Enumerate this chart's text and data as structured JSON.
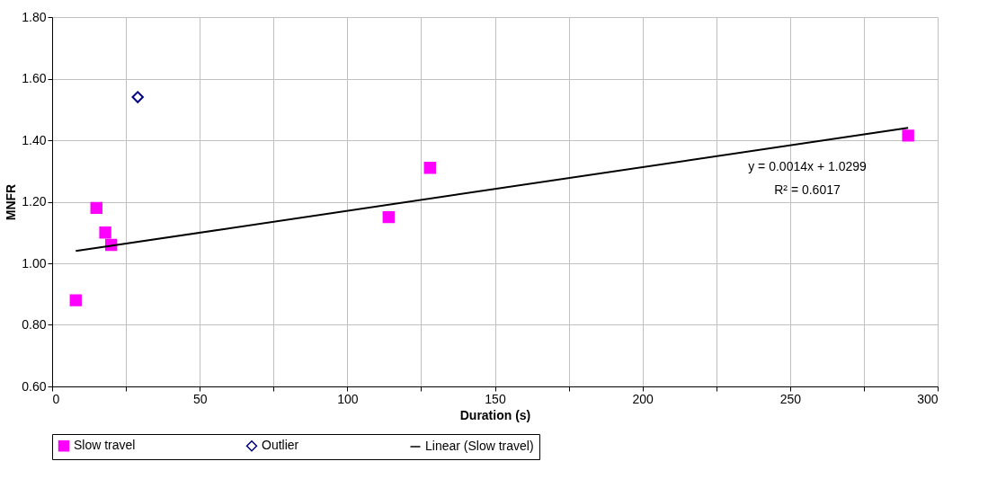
{
  "chart_data": {
    "type": "scatter",
    "xlabel": "Duration (s)",
    "ylabel": "MNFR",
    "xlim": [
      0,
      300
    ],
    "xticks": [
      0,
      {
        "value": 25,
        "label": null
      },
      50,
      {
        "value": 75,
        "label": null
      },
      100,
      {
        "value": 125,
        "label": null
      },
      150,
      {
        "value": 175,
        "label": null
      },
      200,
      {
        "value": 225,
        "label": null
      },
      250,
      {
        "value": 275,
        "label": null
      },
      300
    ],
    "ylim": [
      0.6,
      1.8
    ],
    "yticks": [
      {
        "value": 0.6,
        "label": "0.60"
      },
      {
        "value": 0.8,
        "label": "0.80"
      },
      {
        "value": 1.0,
        "label": "1.00"
      },
      {
        "value": 1.2,
        "label": "1.20"
      },
      {
        "value": 1.4,
        "label": "1.40"
      },
      {
        "value": 1.6,
        "label": "1.60"
      },
      {
        "value": 1.8,
        "label": "1.80"
      }
    ],
    "grid": true,
    "legend": "bottom",
    "series": [
      {
        "name": "Slow travel",
        "marker": "square",
        "color": "#ff00ff",
        "x": [
          8,
          15,
          18,
          20,
          114,
          128,
          290
        ],
        "values": [
          0.88,
          1.18,
          1.1,
          1.06,
          1.15,
          1.31,
          1.415
        ]
      },
      {
        "name": "Outlier",
        "marker": "diamond",
        "color": "#000080",
        "x": [
          29
        ],
        "values": [
          1.54
        ]
      },
      {
        "name": "Linear (Slow travel)",
        "type": "line",
        "marker": "none",
        "color": "#000000",
        "x": [
          8,
          290
        ],
        "values": [
          1.04,
          1.44
        ]
      }
    ],
    "annotations": [
      "y = 0.0014x + 1.0299",
      "R² = 0.6017"
    ]
  }
}
